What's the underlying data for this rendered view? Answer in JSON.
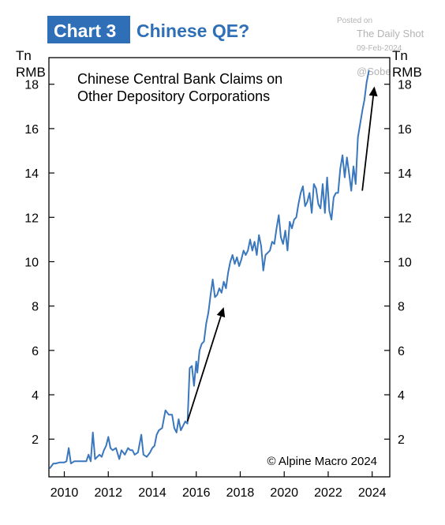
{
  "header": {
    "badge": "Chart 3",
    "title": "Chinese QE?"
  },
  "watermark": {
    "posted_on": "Posted on",
    "publisher": "The Daily Shot",
    "date": "09-Feb-2024",
    "handle": "@Sobe"
  },
  "colors": {
    "accent": "#2e6fb7",
    "line": "#3a77bd",
    "frame": "#000000",
    "watermark": "#b4b4b4"
  },
  "chart_data": {
    "type": "line",
    "title": "Chinese Central Bank Claims on Other Depository Corporations",
    "title_lines": [
      "Chinese Central Bank Claims on",
      "Other Depository Corporations"
    ],
    "copyright": "© Alpine Macro 2024",
    "ylabel_left": [
      "Tn",
      "RMB"
    ],
    "ylabel_right": [
      "Tn",
      "RMB"
    ],
    "xlim": [
      2009.3,
      2024.8
    ],
    "ylim": [
      0.3,
      19.2
    ],
    "xticks": [
      2010,
      2012,
      2014,
      2016,
      2018,
      2020,
      2022,
      2024
    ],
    "yticks": [
      2,
      4,
      6,
      8,
      10,
      12,
      14,
      16,
      18
    ],
    "grid": false,
    "series": [
      {
        "x": [
          2009.35,
          2009.5,
          2009.6,
          2009.8,
          2010.0,
          2010.1,
          2010.2,
          2010.3,
          2010.45,
          2010.6,
          2010.8,
          2011.0,
          2011.1,
          2011.2,
          2011.3,
          2011.4,
          2011.5,
          2011.6,
          2011.7,
          2011.8,
          2011.9,
          2012.0,
          2012.1,
          2012.2,
          2012.35,
          2012.5,
          2012.6,
          2012.75,
          2012.9,
          2013.0,
          2013.1,
          2013.2,
          2013.35,
          2013.5,
          2013.6,
          2013.75,
          2013.9,
          2014.0,
          2014.1,
          2014.2,
          2014.3,
          2014.45,
          2014.6,
          2014.75,
          2014.9,
          2015.0,
          2015.1,
          2015.2,
          2015.3,
          2015.4,
          2015.5,
          2015.6,
          2015.7,
          2015.8,
          2015.9,
          2016.0,
          2016.05,
          2016.15,
          2016.25,
          2016.35,
          2016.45,
          2016.55,
          2016.65,
          2016.75,
          2016.85,
          2016.95,
          2017.05,
          2017.15,
          2017.25,
          2017.35,
          2017.45,
          2017.55,
          2017.65,
          2017.75,
          2017.85,
          2017.95,
          2018.05,
          2018.15,
          2018.25,
          2018.35,
          2018.45,
          2018.55,
          2018.65,
          2018.75,
          2018.85,
          2018.95,
          2019.05,
          2019.15,
          2019.25,
          2019.35,
          2019.45,
          2019.55,
          2019.65,
          2019.75,
          2019.85,
          2019.95,
          2020.05,
          2020.15,
          2020.25,
          2020.35,
          2020.45,
          2020.55,
          2020.65,
          2020.75,
          2020.85,
          2020.95,
          2021.05,
          2021.15,
          2021.25,
          2021.35,
          2021.45,
          2021.55,
          2021.65,
          2021.75,
          2021.85,
          2021.95,
          2022.05,
          2022.15,
          2022.25,
          2022.35,
          2022.45,
          2022.55,
          2022.65,
          2022.75,
          2022.85,
          2022.95,
          2023.05,
          2023.15,
          2023.25,
          2023.35,
          2023.45,
          2023.55,
          2023.65,
          2023.75,
          2023.85
        ],
        "values": [
          0.7,
          0.9,
          0.9,
          0.95,
          0.95,
          1.0,
          1.6,
          0.9,
          1.0,
          1.0,
          1.0,
          1.0,
          1.3,
          1.0,
          2.3,
          1.1,
          1.2,
          1.3,
          1.2,
          1.5,
          1.7,
          2.1,
          1.6,
          1.5,
          1.6,
          1.1,
          1.5,
          1.3,
          1.6,
          1.5,
          1.5,
          1.3,
          1.4,
          2.2,
          1.3,
          1.2,
          1.4,
          1.6,
          1.7,
          2.2,
          2.4,
          2.5,
          3.3,
          3.1,
          3.1,
          2.5,
          2.3,
          2.9,
          2.4,
          2.6,
          2.8,
          2.7,
          5.2,
          5.3,
          4.4,
          5.5,
          5.0,
          6.0,
          6.3,
          6.4,
          7.2,
          7.7,
          8.5,
          9.2,
          8.4,
          8.5,
          8.8,
          8.6,
          9.1,
          8.8,
          9.5,
          10.0,
          10.3,
          9.9,
          10.2,
          9.8,
          10.1,
          10.5,
          10.3,
          10.5,
          11.0,
          10.5,
          10.9,
          10.3,
          11.2,
          10.7,
          9.6,
          10.3,
          10.4,
          10.5,
          10.9,
          10.8,
          11.5,
          12.1,
          11.1,
          10.8,
          11.4,
          10.5,
          11.8,
          11.5,
          11.9,
          12.0,
          12.6,
          13.1,
          13.4,
          12.5,
          12.7,
          13.1,
          12.2,
          13.5,
          13.3,
          12.6,
          12.4,
          13.5,
          12.2,
          13.8,
          12.3,
          11.9,
          12.9,
          13.1,
          13.1,
          14.2,
          14.8,
          13.8,
          14.7,
          14.0,
          13.2,
          14.3,
          13.5,
          15.6,
          16.2,
          16.8,
          17.3,
          18.1,
          18.6
        ]
      }
    ],
    "annotations": [
      {
        "type": "arrow",
        "from": [
          2015.6,
          2.8
        ],
        "to": [
          2017.25,
          7.95
        ]
      },
      {
        "type": "arrow",
        "from": [
          2023.55,
          13.2
        ],
        "to": [
          2024.1,
          17.9
        ]
      }
    ]
  }
}
